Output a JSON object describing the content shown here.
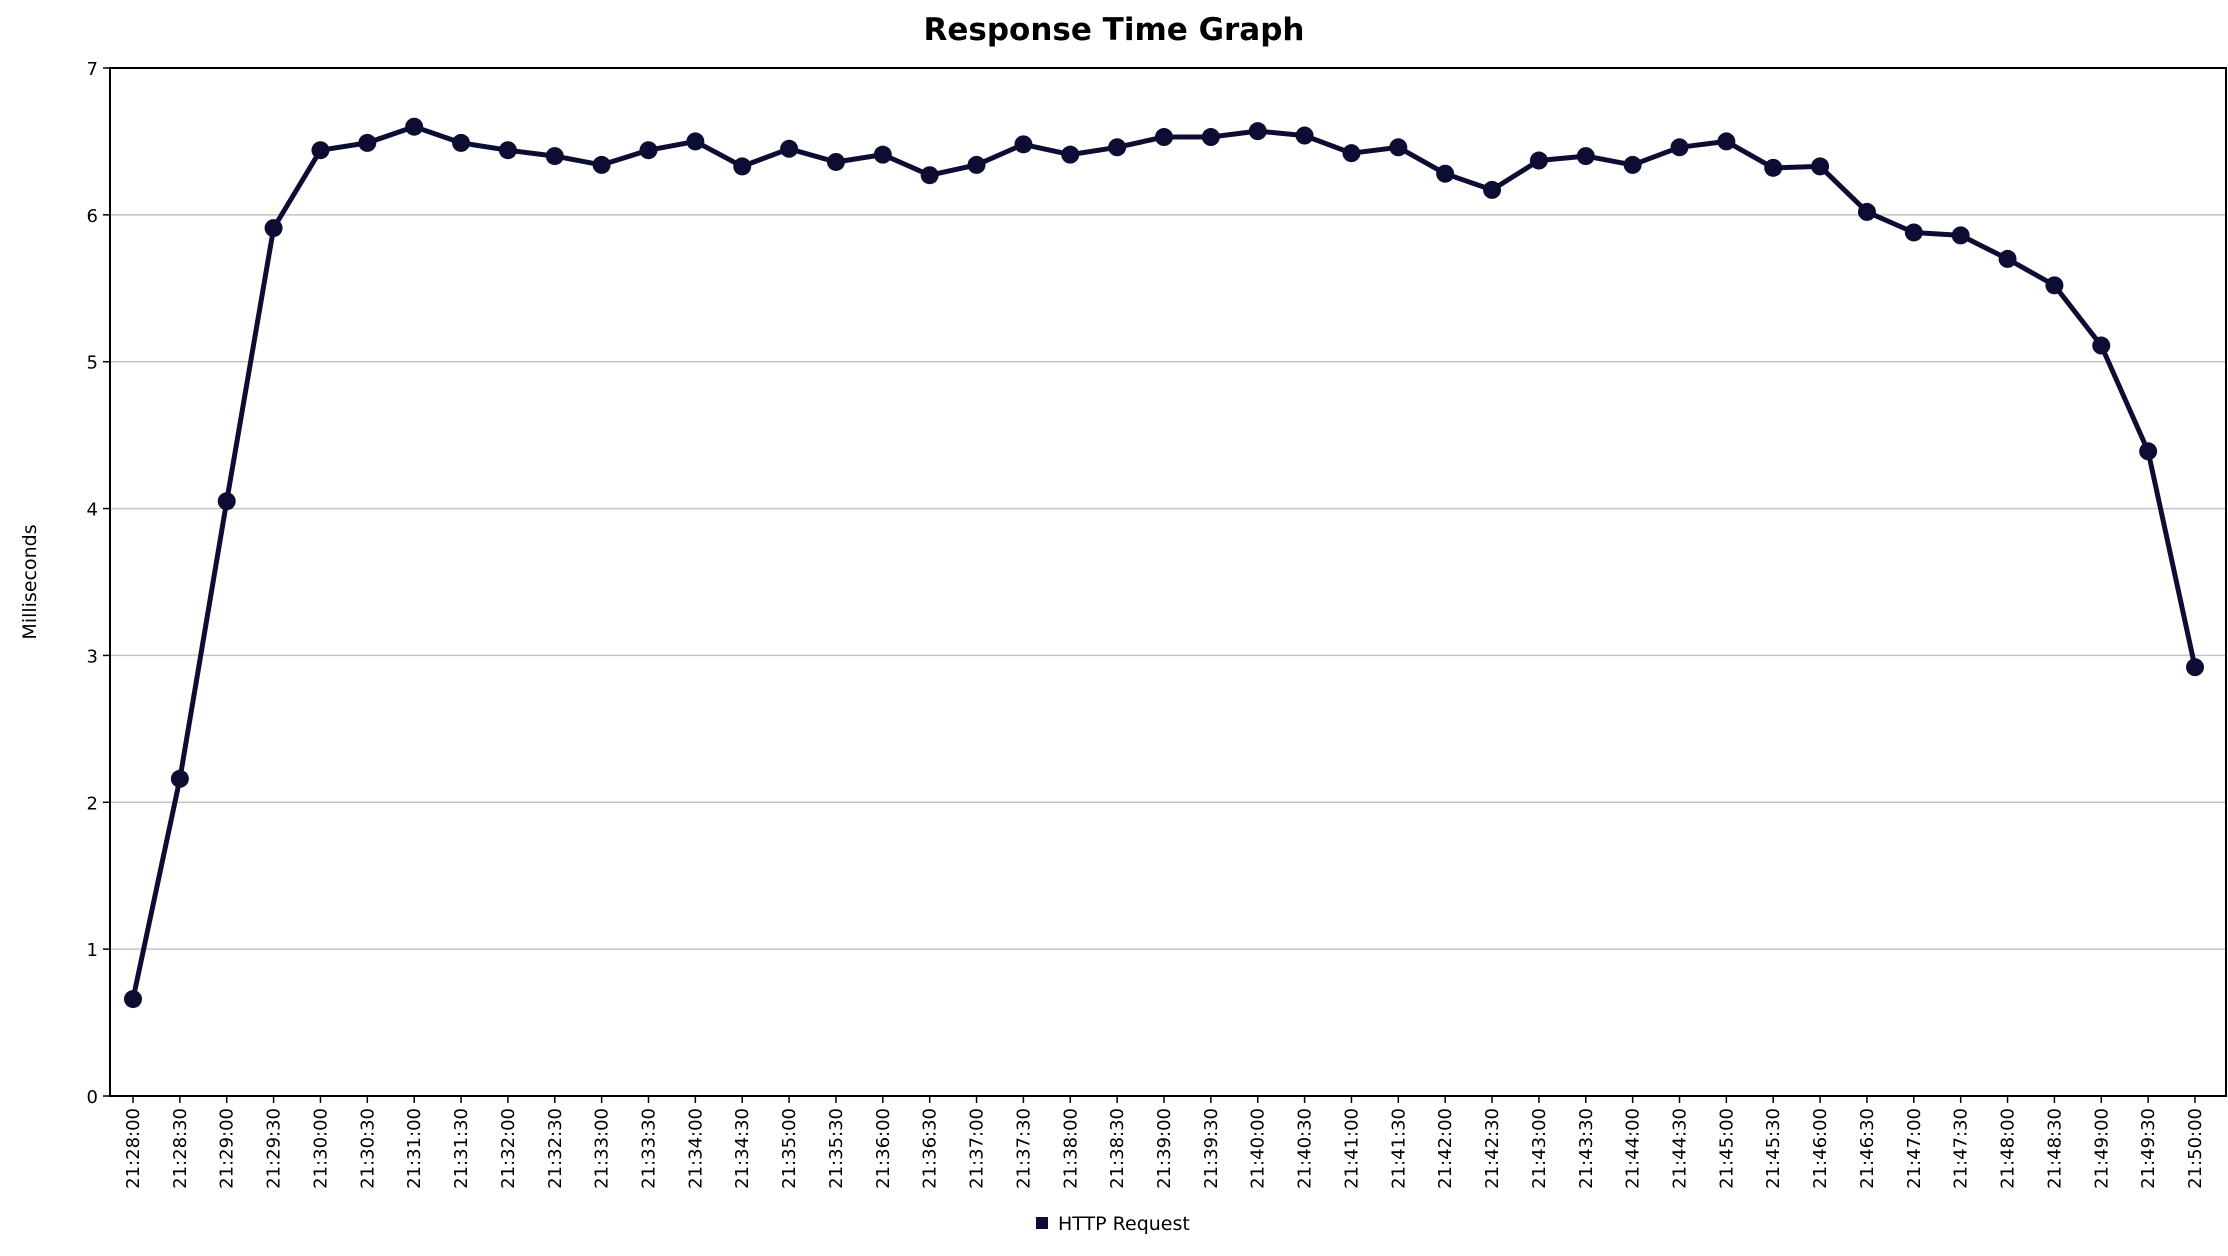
{
  "chart_data": {
    "type": "line",
    "title": "Response Time Graph",
    "ylabel": "Milliseconds",
    "xlabel": "",
    "ylim": [
      0,
      7
    ],
    "yticks": [
      "0",
      "1",
      "2",
      "3",
      "4",
      "5",
      "6",
      "7"
    ],
    "grid": true,
    "legend_position": "bottom",
    "categories": [
      "21:28:00",
      "21:28:30",
      "21:29:00",
      "21:29:30",
      "21:30:00",
      "21:30:30",
      "21:31:00",
      "21:31:30",
      "21:32:00",
      "21:32:30",
      "21:33:00",
      "21:33:30",
      "21:34:00",
      "21:34:30",
      "21:35:00",
      "21:35:30",
      "21:36:00",
      "21:36:30",
      "21:37:00",
      "21:37:30",
      "21:38:00",
      "21:38:30",
      "21:39:00",
      "21:39:30",
      "21:40:00",
      "21:40:30",
      "21:41:00",
      "21:41:30",
      "21:42:00",
      "21:42:30",
      "21:43:00",
      "21:43:30",
      "21:44:00",
      "21:44:30",
      "21:45:00",
      "21:45:30",
      "21:46:00",
      "21:46:30",
      "21:47:00",
      "21:47:30",
      "21:48:00",
      "21:48:30",
      "21:49:00",
      "21:49:30",
      "21:50:00"
    ],
    "series": [
      {
        "name": "HTTP Request",
        "color": "#0d0d33",
        "values": [
          0.66,
          2.16,
          4.05,
          5.91,
          6.44,
          6.49,
          6.6,
          6.49,
          6.44,
          6.4,
          6.34,
          6.44,
          6.5,
          6.33,
          6.45,
          6.36,
          6.41,
          6.27,
          6.34,
          6.48,
          6.41,
          6.46,
          6.53,
          6.53,
          6.57,
          6.54,
          6.42,
          6.46,
          6.28,
          6.17,
          6.37,
          6.4,
          6.34,
          6.46,
          6.5,
          6.32,
          6.33,
          6.02,
          5.88,
          5.86,
          5.7,
          5.52,
          5.11,
          4.39,
          2.92
        ]
      }
    ]
  }
}
